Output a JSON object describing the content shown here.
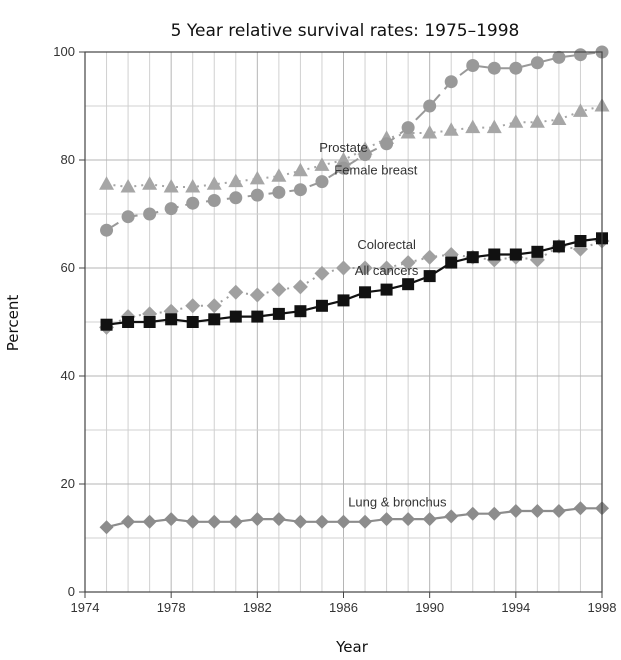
{
  "chart_data": {
    "type": "line",
    "title": "5 Year relative survival rates: 1975–1998",
    "xlabel": "Year",
    "ylabel": "Percent",
    "xlim": [
      1974,
      1998
    ],
    "ylim": [
      0,
      100
    ],
    "x_ticks": [
      "1974",
      "1978",
      "1982",
      "1986",
      "1990",
      "1994",
      "1998"
    ],
    "y_ticks": [
      "0",
      "20",
      "40",
      "60",
      "80",
      "100"
    ],
    "grid": true,
    "x": [
      1975,
      1976,
      1977,
      1978,
      1979,
      1980,
      1981,
      1982,
      1983,
      1984,
      1985,
      1986,
      1987,
      1988,
      1989,
      1990,
      1991,
      1992,
      1993,
      1994,
      1995,
      1996,
      1997,
      1998
    ],
    "series": [
      {
        "name": "Prostate",
        "marker": "triangle",
        "line": "dotted",
        "color": "#a6a6a6",
        "values": [
          75.5,
          75,
          75.5,
          75,
          75,
          75.5,
          76,
          76.5,
          77,
          78,
          79,
          80,
          82,
          84,
          85,
          85,
          85.5,
          86,
          86,
          87,
          87,
          87.5,
          89,
          90
        ]
      },
      {
        "name": "Female breast",
        "marker": "circle",
        "line": "dashed",
        "color": "#999999",
        "values": [
          67,
          69.5,
          70,
          71,
          72,
          72.5,
          73,
          73.5,
          74,
          74.5,
          76,
          78.5,
          81,
          83,
          86,
          90,
          94.5,
          97.5,
          97,
          97,
          98,
          99,
          99.5,
          100
        ]
      },
      {
        "name": "Colorectal",
        "marker": "diamond",
        "line": "dotted",
        "color": "#a0a0a0",
        "values": [
          49,
          51,
          51.5,
          52,
          53,
          53,
          55.5,
          55,
          56,
          56.5,
          59,
          60,
          60,
          60,
          61,
          62,
          62.5,
          62,
          61.5,
          62,
          61.5,
          64,
          63.5,
          65
        ]
      },
      {
        "name": "All cancers",
        "marker": "square",
        "line": "solid",
        "color": "#111111",
        "values": [
          49.5,
          50,
          50,
          50.5,
          50,
          50.5,
          51,
          51,
          51.5,
          52,
          53,
          54,
          55.5,
          56,
          57,
          58.5,
          61,
          62,
          62.5,
          62.5,
          63,
          64,
          65,
          65.5
        ]
      },
      {
        "name": "Lung & bronchus",
        "marker": "plus",
        "line": "solid",
        "color": "#8c8c8c",
        "values": [
          12,
          13,
          13,
          13.5,
          13,
          13,
          13,
          13.5,
          13.5,
          13,
          13,
          13,
          13,
          13.5,
          13.5,
          13.5,
          14,
          14.5,
          14.5,
          15,
          15,
          15,
          15.5,
          15.5
        ]
      }
    ]
  }
}
